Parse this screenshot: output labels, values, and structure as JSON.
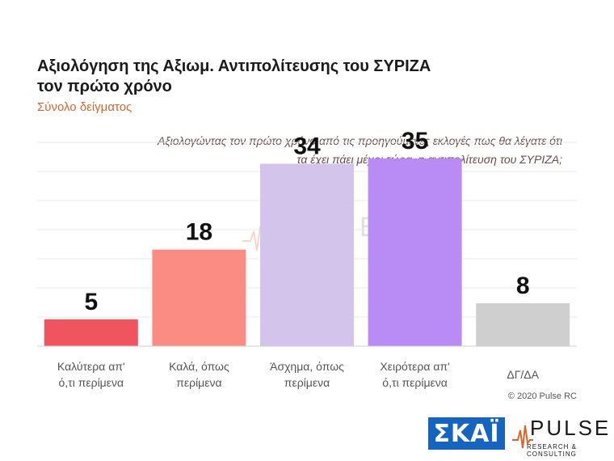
{
  "header": {
    "title_line1": "Αξιολόγηση της Αξιωμ. Αντιπολίτευσης του ΣΥΡΙΖΑ",
    "title_line2": "τον πρώτο χρόνο",
    "subtitle": "Σύνολο δείγματος",
    "question_line1": "Αξιολογώντας τον πρώτο χρόνο από τις προηγούμενες εκλογές πως θα λέγατε ότι",
    "question_line2": "τα έχει πάει μέχρι τώρα, η αντιπολίτευση του ΣΥΡΙΖΑ;"
  },
  "chart_data": {
    "type": "bar",
    "categories": [
      [
        "Καλύτερα απ'",
        "ό,τι περίμενα"
      ],
      [
        "Καλά, όπως",
        "περίμενα"
      ],
      [
        "Άσχημα, όπως",
        "περίμενα"
      ],
      [
        "Χειρότερα απ'",
        "ό,τι περίμενα"
      ],
      [
        "ΔΓ/ΔΑ"
      ]
    ],
    "values": [
      5,
      18,
      34,
      35,
      8
    ],
    "colors": [
      "#f0545e",
      "#fb8c83",
      "#d3c4ec",
      "#b88cf4",
      "#cfcfcf"
    ],
    "ylim": [
      0,
      38
    ],
    "grid": true,
    "data_labels": true
  },
  "watermark": {
    "text": "PULSE",
    "sub": "RESEARCH & CONSULTING"
  },
  "footer": {
    "copyright": "© 2020 Pulse RC",
    "skai_logo": "ΣΚΑΪ",
    "pulse_logo": "PULSE",
    "pulse_sub": "RESEARCH & CONSULTING"
  }
}
